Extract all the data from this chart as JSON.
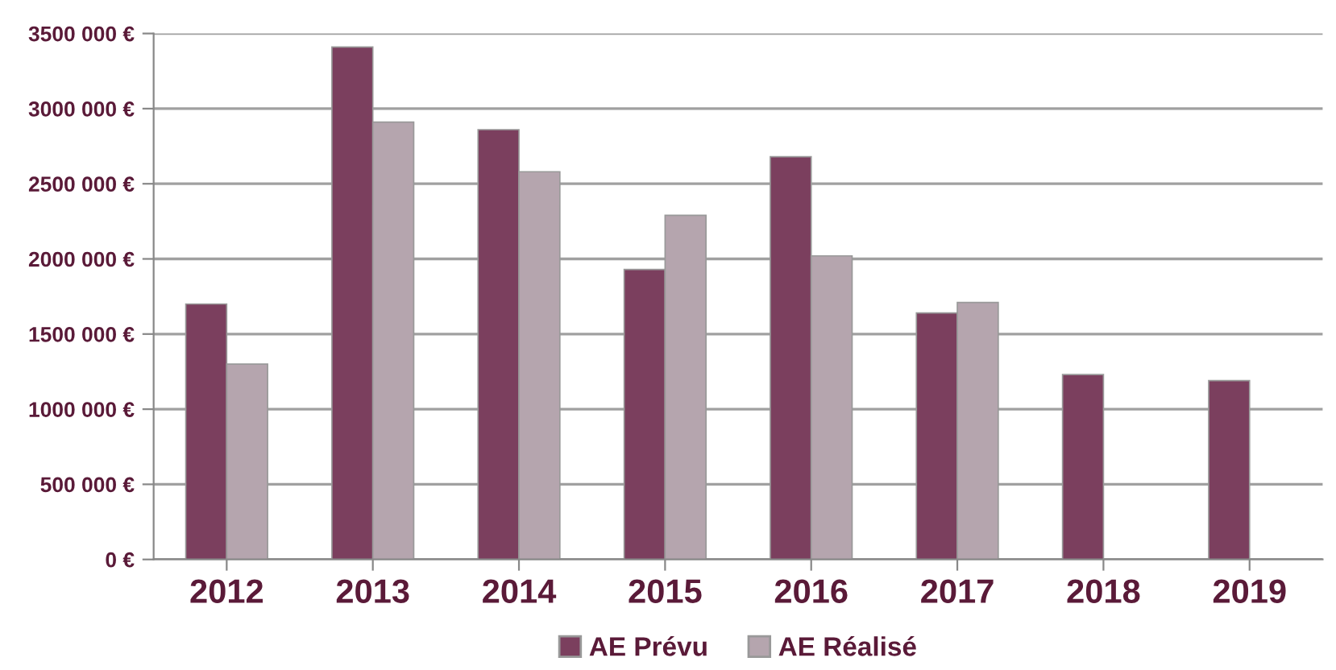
{
  "chart_data": {
    "type": "bar",
    "categories": [
      "2012",
      "2013",
      "2014",
      "2015",
      "2016",
      "2017",
      "2018",
      "2019"
    ],
    "series": [
      {
        "name": "AE Prévu",
        "color": "#7b3f5e",
        "values": [
          1700000,
          3410000,
          2860000,
          1930000,
          2680000,
          1640000,
          1230000,
          1190000
        ]
      },
      {
        "name": "AE Réalisé",
        "color": "#b5a5ae",
        "values": [
          1300000,
          2910000,
          2580000,
          2290000,
          2020000,
          1710000,
          null,
          null
        ]
      }
    ],
    "ylim": [
      0,
      3500000
    ],
    "yticks": [
      {
        "value": 0,
        "label": "0 €"
      },
      {
        "value": 500000,
        "label": "500 000 €"
      },
      {
        "value": 1000000,
        "label": "1000 000 €"
      },
      {
        "value": 1500000,
        "label": "1500 000 €"
      },
      {
        "value": 2000000,
        "label": "2000 000 €"
      },
      {
        "value": 2500000,
        "label": "2500 000 €"
      },
      {
        "value": 3000000,
        "label": "3000 000 €"
      },
      {
        "value": 3500000,
        "label": "3500 000 €"
      }
    ],
    "grid": "y",
    "legend": "bottom"
  }
}
